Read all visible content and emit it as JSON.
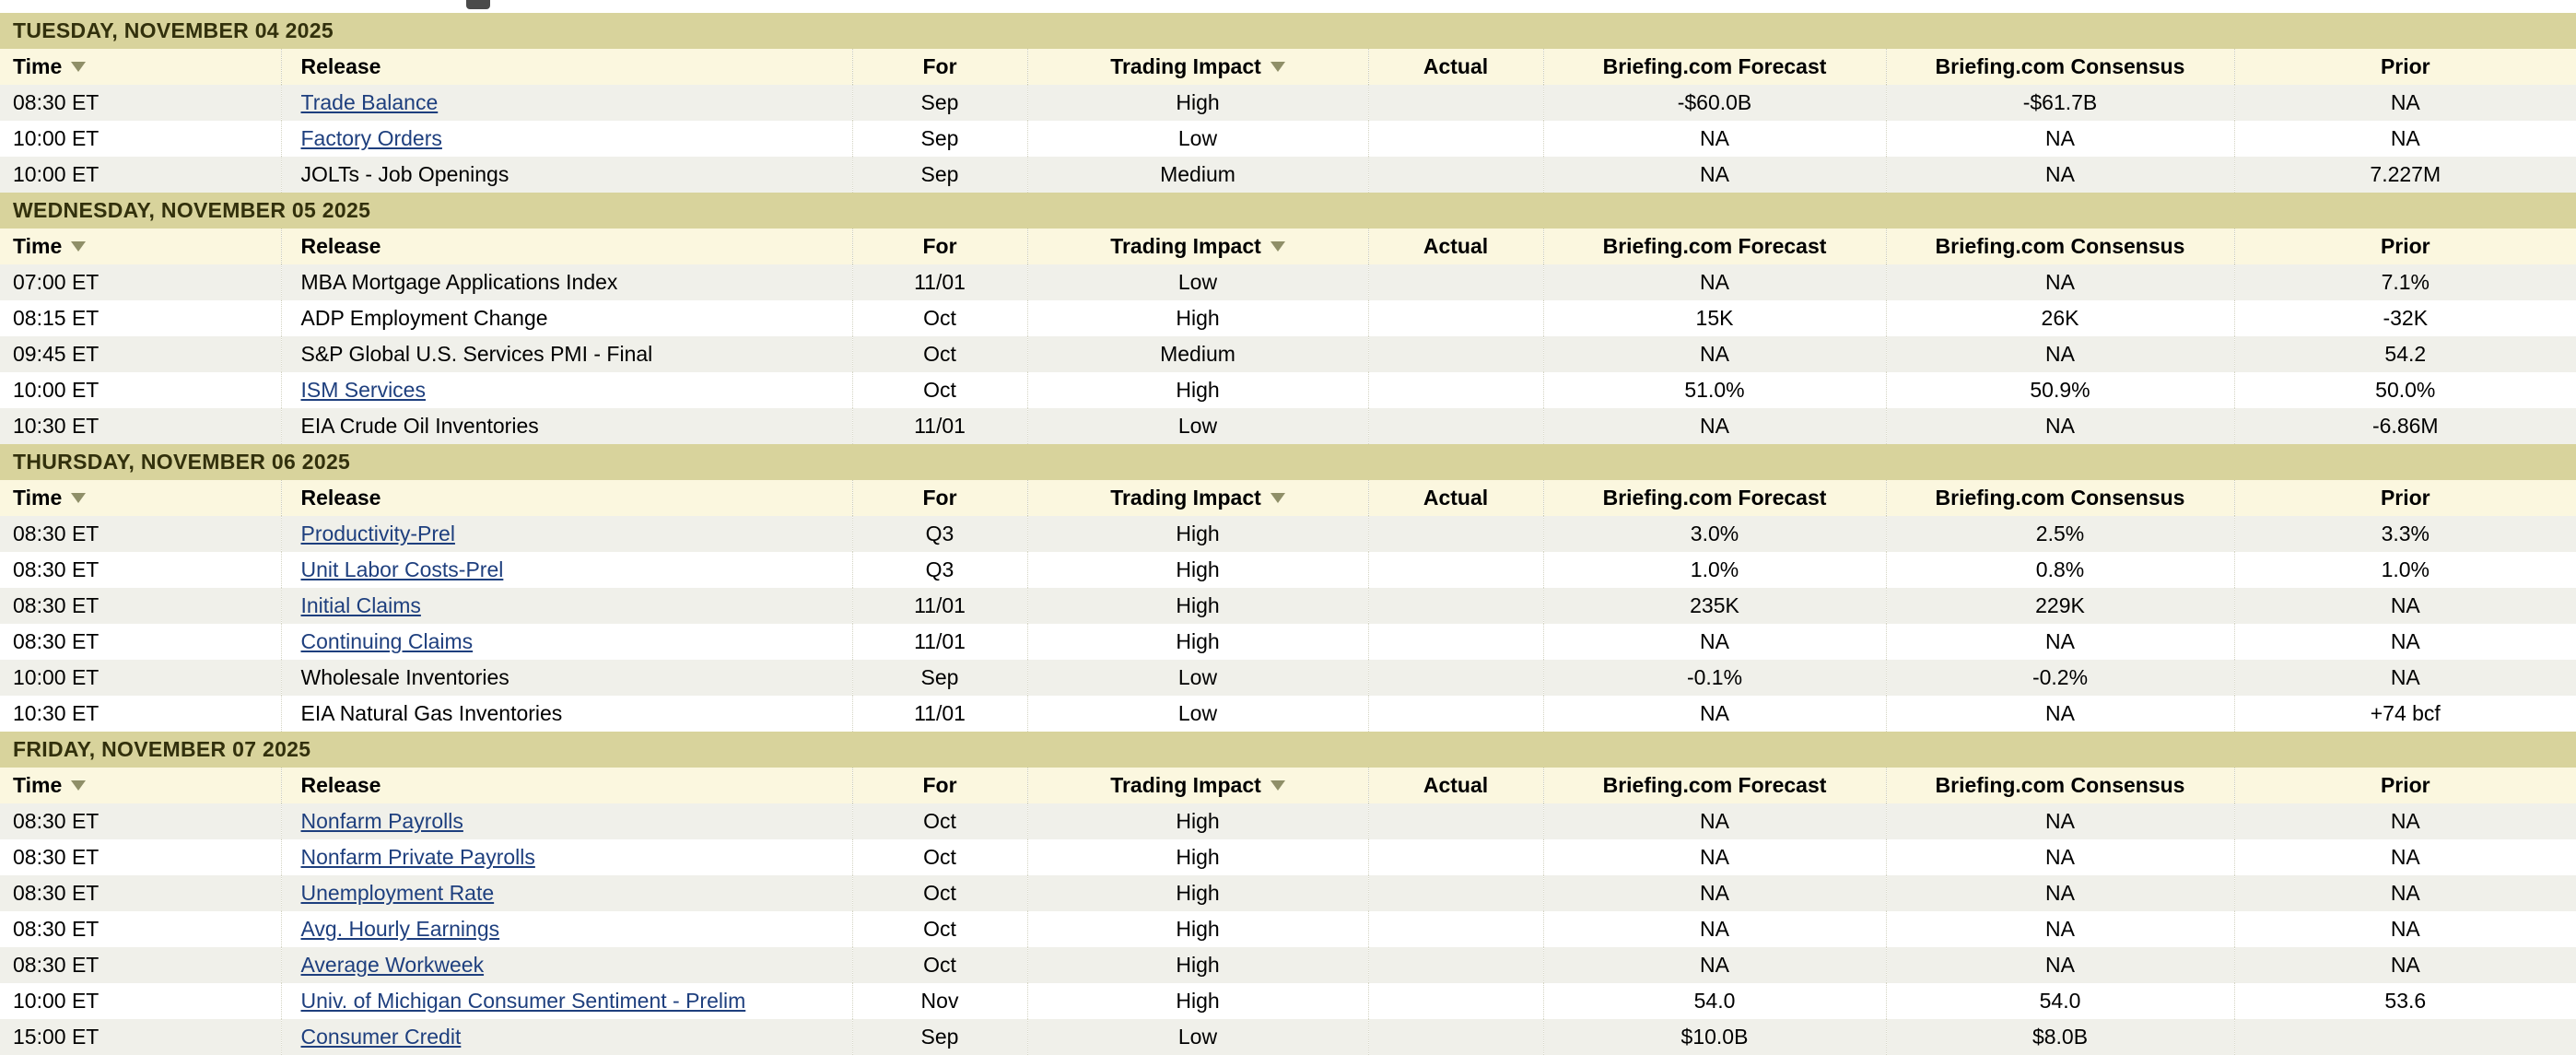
{
  "colors": {
    "day-band": "#d8d39c",
    "header-band": "#fbf7df",
    "row-alt": "#f0f0ea",
    "link": "#1e3f7e",
    "sort-arrow": "#8f8f68"
  },
  "columns": [
    {
      "key": "time",
      "label": "Time",
      "sortable": true,
      "align": "left"
    },
    {
      "key": "release",
      "label": "Release",
      "sortable": false,
      "align": "left"
    },
    {
      "key": "for",
      "label": "For",
      "sortable": false,
      "align": "center"
    },
    {
      "key": "impact",
      "label": "Trading Impact",
      "sortable": true,
      "align": "center"
    },
    {
      "key": "actual",
      "label": "Actual",
      "sortable": false,
      "align": "center"
    },
    {
      "key": "forecast",
      "label": "Briefing.com Forecast",
      "sortable": false,
      "align": "center"
    },
    {
      "key": "consensus",
      "label": "Briefing.com Consensus",
      "sortable": false,
      "align": "center"
    },
    {
      "key": "prior",
      "label": "Prior",
      "sortable": false,
      "align": "center"
    }
  ],
  "sections": [
    {
      "date": "TUESDAY, NOVEMBER 04 2025",
      "rows": [
        {
          "time": "08:30 ET",
          "release": "Trade Balance",
          "is_link": true,
          "for": "Sep",
          "impact": "High",
          "actual": "",
          "forecast": "-$60.0B",
          "consensus": "-$61.7B",
          "prior": "NA"
        },
        {
          "time": "10:00 ET",
          "release": "Factory Orders",
          "is_link": true,
          "for": "Sep",
          "impact": "Low",
          "actual": "",
          "forecast": "NA",
          "consensus": "NA",
          "prior": "NA"
        },
        {
          "time": "10:00 ET",
          "release": "JOLTs - Job Openings",
          "is_link": false,
          "for": "Sep",
          "impact": "Medium",
          "actual": "",
          "forecast": "NA",
          "consensus": "NA",
          "prior": "7.227M"
        }
      ]
    },
    {
      "date": "WEDNESDAY, NOVEMBER 05 2025",
      "rows": [
        {
          "time": "07:00 ET",
          "release": "MBA Mortgage Applications Index",
          "is_link": false,
          "for": "11/01",
          "impact": "Low",
          "actual": "",
          "forecast": "NA",
          "consensus": "NA",
          "prior": "7.1%"
        },
        {
          "time": "08:15 ET",
          "release": "ADP Employment Change",
          "is_link": false,
          "for": "Oct",
          "impact": "High",
          "actual": "",
          "forecast": "15K",
          "consensus": "26K",
          "prior": "-32K"
        },
        {
          "time": "09:45 ET",
          "release": "S&P Global U.S. Services PMI - Final",
          "is_link": false,
          "for": "Oct",
          "impact": "Medium",
          "actual": "",
          "forecast": "NA",
          "consensus": "NA",
          "prior": "54.2"
        },
        {
          "time": "10:00 ET",
          "release": "ISM Services",
          "is_link": true,
          "for": "Oct",
          "impact": "High",
          "actual": "",
          "forecast": "51.0%",
          "consensus": "50.9%",
          "prior": "50.0%"
        },
        {
          "time": "10:30 ET",
          "release": "EIA Crude Oil Inventories",
          "is_link": false,
          "for": "11/01",
          "impact": "Low",
          "actual": "",
          "forecast": "NA",
          "consensus": "NA",
          "prior": "-6.86M"
        }
      ]
    },
    {
      "date": "THURSDAY, NOVEMBER 06 2025",
      "rows": [
        {
          "time": "08:30 ET",
          "release": "Productivity-Prel",
          "is_link": true,
          "for": "Q3",
          "impact": "High",
          "actual": "",
          "forecast": "3.0%",
          "consensus": "2.5%",
          "prior": "3.3%"
        },
        {
          "time": "08:30 ET",
          "release": "Unit Labor Costs-Prel",
          "is_link": true,
          "for": "Q3",
          "impact": "High",
          "actual": "",
          "forecast": "1.0%",
          "consensus": "0.8%",
          "prior": "1.0%"
        },
        {
          "time": "08:30 ET",
          "release": "Initial Claims",
          "is_link": true,
          "for": "11/01",
          "impact": "High",
          "actual": "",
          "forecast": "235K",
          "consensus": "229K",
          "prior": "NA"
        },
        {
          "time": "08:30 ET",
          "release": "Continuing Claims",
          "is_link": true,
          "for": "11/01",
          "impact": "High",
          "actual": "",
          "forecast": "NA",
          "consensus": "NA",
          "prior": "NA"
        },
        {
          "time": "10:00 ET",
          "release": "Wholesale Inventories",
          "is_link": false,
          "for": "Sep",
          "impact": "Low",
          "actual": "",
          "forecast": "-0.1%",
          "consensus": "-0.2%",
          "prior": "NA"
        },
        {
          "time": "10:30 ET",
          "release": "EIA Natural Gas Inventories",
          "is_link": false,
          "for": "11/01",
          "impact": "Low",
          "actual": "",
          "forecast": "NA",
          "consensus": "NA",
          "prior": "+74 bcf"
        }
      ]
    },
    {
      "date": "FRIDAY, NOVEMBER 07 2025",
      "rows": [
        {
          "time": "08:30 ET",
          "release": "Nonfarm Payrolls",
          "is_link": true,
          "for": "Oct",
          "impact": "High",
          "actual": "",
          "forecast": "NA",
          "consensus": "NA",
          "prior": "NA"
        },
        {
          "time": "08:30 ET",
          "release": "Nonfarm Private Payrolls",
          "is_link": true,
          "for": "Oct",
          "impact": "High",
          "actual": "",
          "forecast": "NA",
          "consensus": "NA",
          "prior": "NA"
        },
        {
          "time": "08:30 ET",
          "release": "Unemployment Rate",
          "is_link": true,
          "for": "Oct",
          "impact": "High",
          "actual": "",
          "forecast": "NA",
          "consensus": "NA",
          "prior": "NA"
        },
        {
          "time": "08:30 ET",
          "release": "Avg. Hourly Earnings",
          "is_link": true,
          "for": "Oct",
          "impact": "High",
          "actual": "",
          "forecast": "NA",
          "consensus": "NA",
          "prior": "NA"
        },
        {
          "time": "08:30 ET",
          "release": "Average Workweek",
          "is_link": true,
          "for": "Oct",
          "impact": "High",
          "actual": "",
          "forecast": "NA",
          "consensus": "NA",
          "prior": "NA"
        },
        {
          "time": "10:00 ET",
          "release": "Univ. of Michigan Consumer Sentiment - Prelim",
          "is_link": true,
          "for": "Nov",
          "impact": "High",
          "actual": "",
          "forecast": "54.0",
          "consensus": "54.0",
          "prior": "53.6"
        },
        {
          "time": "15:00 ET",
          "release": "Consumer Credit",
          "is_link": true,
          "for": "Sep",
          "impact": "Low",
          "actual": "",
          "forecast": "$10.0B",
          "consensus": "$8.0B",
          "prior": ""
        }
      ]
    }
  ]
}
